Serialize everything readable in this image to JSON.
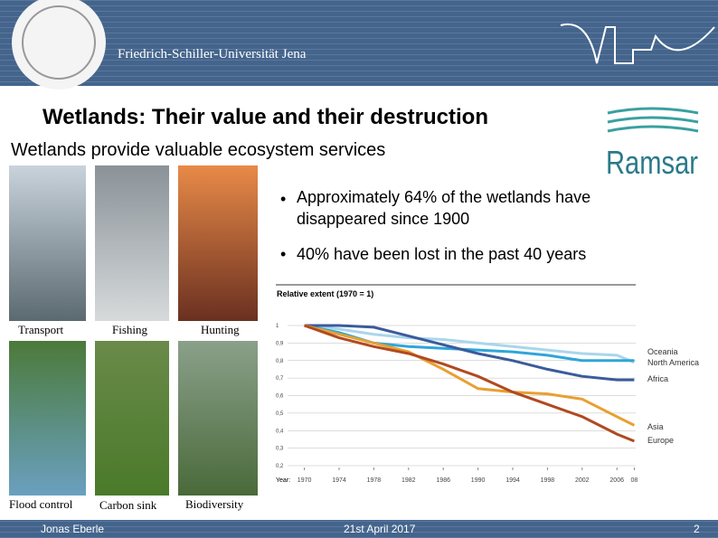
{
  "header": {
    "university": "Friedrich-Schiller-Universität Jena"
  },
  "title": "Wetlands: Their value and their destruction",
  "subtitle": "Wetlands provide valuable ecosystem services",
  "logo": {
    "text": "Ramsar"
  },
  "photos": [
    "Transport",
    "Fishing",
    "Hunting",
    "Flood control",
    "Carbon sink",
    "Biodiversity"
  ],
  "bullets": [
    "Approximately 64% of the wetlands have disappeared since 1900",
    "40% have been lost in the past 40 years"
  ],
  "chart_data": {
    "type": "line",
    "title": "Relative extent (1970 = 1)",
    "x_label": "Year:",
    "x": [
      1970,
      1974,
      1978,
      1982,
      1986,
      1990,
      1994,
      1998,
      2002,
      2006,
      2008
    ],
    "xlim": [
      1969,
      2009
    ],
    "xticks": [
      1970,
      1974,
      1978,
      1982,
      1986,
      1990,
      1994,
      1998,
      2002,
      2006,
      {
        "value": 2008,
        "label": "08"
      }
    ],
    "ylim": [
      0.2,
      1
    ],
    "yticks": [
      {
        "value": 0.2,
        "label": "0,2"
      },
      {
        "value": 0.3,
        "label": "0,3"
      },
      {
        "value": 0.4,
        "label": "0,4"
      },
      {
        "value": 0.5,
        "label": "0,5"
      },
      {
        "value": 0.6,
        "label": "0,6"
      },
      {
        "value": 0.7,
        "label": "0,7"
      },
      {
        "value": 0.8,
        "label": "0,8"
      },
      {
        "value": 0.9,
        "label": "0,9"
      },
      1
    ],
    "grid": true,
    "series": [
      {
        "name": "Oceania",
        "color": "#a9d6ec",
        "values": [
          1,
          0.98,
          0.95,
          0.93,
          0.92,
          0.9,
          0.88,
          0.86,
          0.84,
          0.83,
          0.79
        ]
      },
      {
        "name": "North America",
        "color": "#2ea6d8",
        "values": [
          1,
          0.96,
          0.9,
          0.88,
          0.87,
          0.86,
          0.85,
          0.83,
          0.8,
          0.8,
          0.8
        ]
      },
      {
        "name": "Africa",
        "color": "#3b5b9b",
        "values": [
          1,
          1,
          0.99,
          0.94,
          0.89,
          0.84,
          0.8,
          0.75,
          0.71,
          0.69,
          0.69
        ]
      },
      {
        "name": "Asia",
        "color": "#e8a030",
        "values": [
          1,
          0.95,
          0.9,
          0.85,
          0.75,
          0.64,
          0.62,
          0.61,
          0.58,
          0.48,
          0.43
        ]
      },
      {
        "name": "Europe",
        "color": "#b04a20",
        "values": [
          1,
          0.93,
          0.88,
          0.84,
          0.78,
          0.71,
          0.62,
          0.55,
          0.48,
          0.38,
          0.34
        ]
      }
    ]
  },
  "footer": {
    "author": "Jonas Eberle",
    "date": "21st April 2017",
    "page": "2"
  }
}
